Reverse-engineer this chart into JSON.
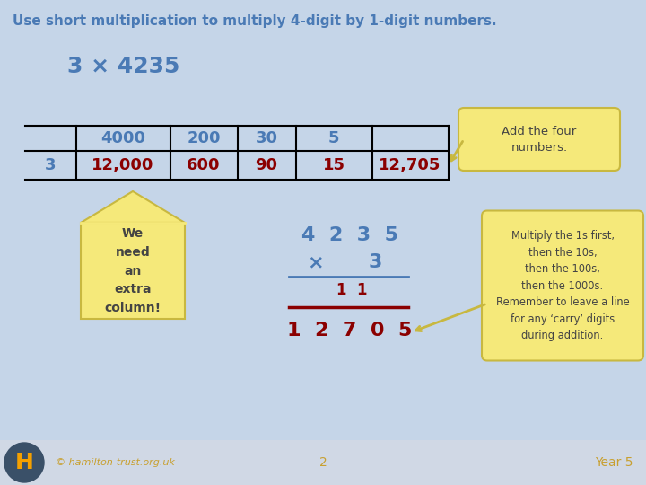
{
  "title": "Use short multiplication to multiply 4-digit by 1-digit numbers.",
  "title_color": "#4a7ab5",
  "bg_color": "#c5d5e8",
  "footer_bg": "#d0d8e5",
  "subtitle": "3 × 4235",
  "subtitle_color": "#4a7ab5",
  "table_headers": [
    "",
    "4000",
    "200",
    "30",
    "5",
    ""
  ],
  "table_row2": [
    "3",
    "12,000",
    "600",
    "90",
    "15",
    "12,705"
  ],
  "header_color": "#4a7ab5",
  "row2_x_color": "#4a7ab5",
  "row2_vals_color": "#8b0000",
  "arrow_label": "Add the four\nnumbers.",
  "arrow_label_color": "#444444",
  "balloon_bg": "#f5e97a",
  "balloon_edge": "#c8b840",
  "left_balloon_text": "We\nneed\nan\nextra\ncolumn!",
  "left_balloon_color": "#444444",
  "right_balloon_text": "Multiply the 1s first,\nthen the 10s,\nthen the 100s,\nthen the 1000s.\nRemember to leave a line\nfor any ‘carry’ digits\nduring addition.",
  "right_balloon_color": "#444444",
  "long_mult_line1": "4  2  3  5",
  "long_mult_line2_x": "×",
  "long_mult_line2_num": "3",
  "long_mult_carry": "1  1",
  "long_mult_result": "1  2  7  0  5",
  "long_mult_color": "#4a7ab5",
  "long_mult_carry_color": "#8b0000",
  "long_mult_result_color": "#8b0000",
  "footer_logo_bg": "#3a5068",
  "footer_logo_letter": "H",
  "footer_logo_color": "#f5a000",
  "footer_link": "© hamilton-trust.org.uk",
  "footer_page": "2",
  "footer_year": "Year 5",
  "footer_text_color": "#c8a030"
}
